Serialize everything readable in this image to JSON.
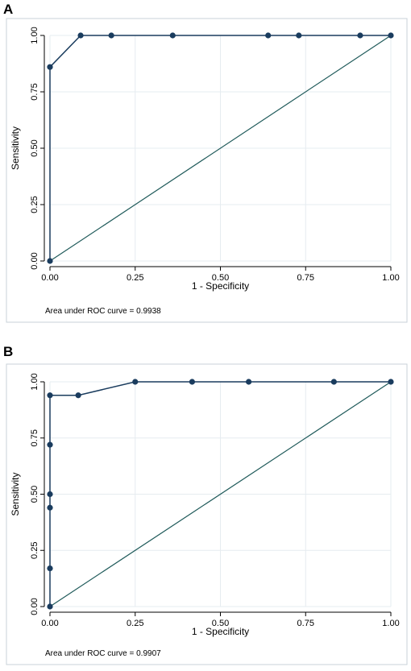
{
  "chart_data": [
    {
      "panel": "A",
      "type": "line",
      "xlabel": "1 - Specificity",
      "ylabel": "Sensitivity",
      "xlim": [
        0,
        1
      ],
      "ylim": [
        0,
        1
      ],
      "xticks": [
        "0.00",
        "0.25",
        "0.50",
        "0.75",
        "1.00"
      ],
      "yticks": [
        "0.00",
        "0.25",
        "0.50",
        "0.75",
        "1.00"
      ],
      "grid": true,
      "series": [
        {
          "x": [
            0,
            0,
            0.09,
            0.18,
            0.36,
            0.64,
            0.73,
            0.91,
            1.0
          ],
          "y": [
            0,
            0.86,
            1.0,
            1.0,
            1.0,
            1.0,
            1.0,
            1.0,
            1.0
          ]
        }
      ],
      "reference_line": {
        "x": [
          0,
          1
        ],
        "y": [
          0,
          1
        ]
      },
      "annotation": "Area under ROC curve = 0.9938"
    },
    {
      "panel": "B",
      "type": "line",
      "xlabel": "1 - Specificity",
      "ylabel": "Sensitivity",
      "xlim": [
        0,
        1
      ],
      "ylim": [
        0,
        1
      ],
      "xticks": [
        "0.00",
        "0.25",
        "0.50",
        "0.75",
        "1.00"
      ],
      "yticks": [
        "0.00",
        "0.25",
        "0.50",
        "0.75",
        "1.00"
      ],
      "grid": true,
      "series": [
        {
          "x": [
            0,
            0,
            0,
            0,
            0,
            0,
            0.083,
            0.25,
            0.417,
            0.583,
            0.833,
            1.0
          ],
          "y": [
            0,
            0.17,
            0.44,
            0.5,
            0.72,
            0.94,
            0.94,
            1.0,
            1.0,
            1.0,
            1.0,
            1.0
          ]
        }
      ],
      "reference_line": {
        "x": [
          0,
          1
        ],
        "y": [
          0,
          1
        ]
      },
      "annotation": "Area under ROC curve = 0.9907"
    }
  ],
  "panels": {
    "a_label": "A",
    "b_label": "B"
  },
  "colors": {
    "curve": "#1a3c5e",
    "reference": "#1f5a5a",
    "grid": "#e6ecf0",
    "frame": "#c8d2d8",
    "axis": "#000000"
  }
}
